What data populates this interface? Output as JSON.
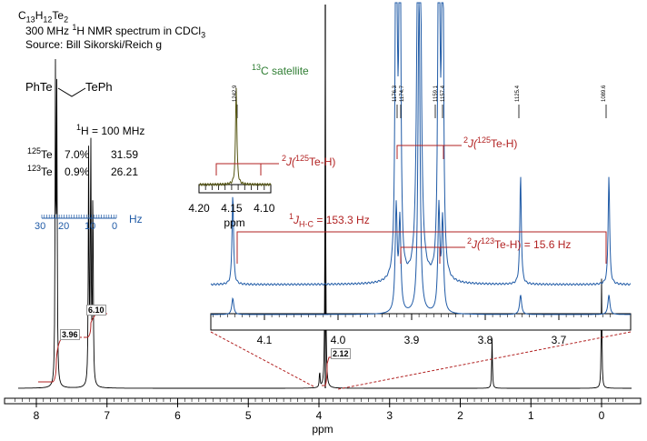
{
  "header": {
    "formula": "C13H12Te2",
    "formula_parts": [
      "C",
      "13",
      "H",
      "12",
      "Te",
      "2"
    ],
    "line2_pre": "300 MHz ",
    "line2_sup": "1",
    "line2_post": "H NMR spectrum in CDCl",
    "line2_sub": "3",
    "source": "Source: Bill Sikorski/Reich g"
  },
  "structure": {
    "left": "PhTe",
    "right": "TePh"
  },
  "isotopes": {
    "scale_sup": "1",
    "scale_text": "H = 100 MHz",
    "rows": [
      {
        "mass": "125",
        "el": "Te",
        "abund": "7.0%",
        "val": "31.59"
      },
      {
        "mass": "123",
        "el": "Te",
        "abund": "0.9%",
        "val": "26.21"
      }
    ]
  },
  "hz_scale": {
    "ticks": [
      "30",
      "20",
      "10",
      "0"
    ],
    "unit": "Hz"
  },
  "annotations": {
    "c13_sup": "13",
    "c13_text": "C satellite",
    "jte125_pre": "2",
    "jte125_mid": "J(",
    "jte125_sup": "125",
    "jte125_post": "Te-H)",
    "inset_j_pre": "2",
    "inset_j_mid": "J(",
    "inset_j_sup": "125",
    "inset_j_post": "Te-H)",
    "jhc_sup": "1",
    "jhc_mid": "J",
    "jhc_sub": "H-C",
    "jhc_post": " = 153.3 Hz",
    "jte123_pre": "2",
    "jte123_mid": "J(",
    "jte123_sup": "123",
    "jte123_post": "Te-H) = 15.6 Hz"
  },
  "peak_labels": [
    "1242.9",
    "1176.3",
    "1174.7",
    "1159.1",
    "1157.4",
    "1125.4",
    "1089.6"
  ],
  "integrals": [
    "3.96",
    "6.10",
    "2.12"
  ],
  "colors": {
    "spectrum": "#000000",
    "expansion": "#1f5aa6",
    "annotation": "#b22222",
    "satellite": "#2e7d32"
  },
  "chart_data": [
    {
      "type": "line",
      "title": "",
      "xlabel": "ppm",
      "ylabel": "",
      "xlim": [
        8.4,
        -0.4
      ],
      "x_ticks": [
        "8",
        "7",
        "6",
        "5",
        "4",
        "3",
        "2",
        "1",
        "0"
      ],
      "series": [
        {
          "peaks_ppm": [
            7.73,
            7.71,
            7.26,
            7.23,
            7.2,
            3.99,
            3.91,
            1.55,
            0.0
          ],
          "heights": [
            0.92,
            0.86,
            0.7,
            0.76,
            0.62,
            0.05,
            1.0,
            0.15,
            0.33
          ]
        }
      ]
    },
    {
      "type": "line",
      "title": "",
      "xlabel": "",
      "ylabel": "",
      "xlim": [
        4.18,
        3.62
      ],
      "x_ticks": [
        "4.1",
        "4.0",
        "3.9",
        "3.8",
        "3.7"
      ],
      "series": [
        {
          "peaks_ppm": [
            4.143,
            3.921,
            3.916,
            3.863,
            3.858,
            3.752,
            3.632,
            3.89
          ],
          "heights": [
            0.05,
            0.32,
            0.28,
            0.32,
            0.28,
            0.06,
            0.06,
            1.0
          ]
        }
      ]
    },
    {
      "type": "line",
      "title": "",
      "xlabel": "ppm",
      "ylabel": "",
      "xlim": [
        4.2,
        4.09
      ],
      "x_ticks": [
        "4.20",
        "4.15",
        "4.10"
      ],
      "series": [
        {
          "peaks_ppm": [
            4.143
          ],
          "heights": [
            1.0
          ]
        }
      ]
    }
  ]
}
